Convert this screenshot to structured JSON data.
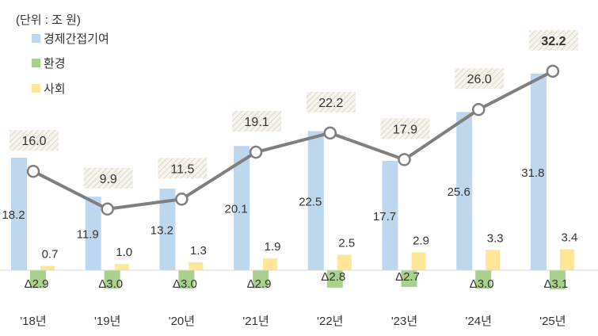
{
  "unit_label": "(단위 : 조 원)",
  "colors": {
    "economic": "#bdd7ee",
    "environment": "#a9d18e",
    "social": "#ffe699",
    "line": "#7f7f7f",
    "text": "#333333"
  },
  "chart_data": {
    "type": "bar",
    "categories": [
      "'18년",
      "'19년",
      "'20년",
      "'21년",
      "'22년",
      "'23년",
      "'24년",
      "'25년"
    ],
    "series": [
      {
        "name": "경제간접기여",
        "type": "bar",
        "values": [
          18.2,
          11.9,
          13.2,
          20.1,
          22.5,
          17.7,
          25.6,
          31.8
        ]
      },
      {
        "name": "환경",
        "type": "bar",
        "values": [
          -2.9,
          -3.0,
          -3.0,
          -2.9,
          -2.8,
          -2.7,
          -3.0,
          -3.1
        ]
      },
      {
        "name": "사회",
        "type": "bar",
        "values": [
          0.7,
          1.0,
          1.3,
          1.9,
          2.5,
          2.9,
          3.3,
          3.4
        ]
      },
      {
        "type": "line",
        "values": [
          16.0,
          9.9,
          11.5,
          19.1,
          22.2,
          17.9,
          26.0,
          32.2
        ]
      }
    ],
    "bar_labels": {
      "economic": [
        "18.2",
        "11.9",
        "13.2",
        "20.1",
        "22.5",
        "17.7",
        "25.6",
        "31.8"
      ],
      "environment": [
        "Δ2.9",
        "Δ3.0",
        "Δ3.0",
        "Δ2.9",
        "Δ2.8",
        "Δ2.7",
        "Δ3.0",
        "Δ3.1"
      ],
      "social": [
        "0.7",
        "1.0",
        "1.3",
        "1.9",
        "2.5",
        "2.9",
        "3.3",
        "3.4"
      ],
      "total": [
        "16.0",
        "9.9",
        "11.5",
        "19.1",
        "22.2",
        "17.9",
        "26.0",
        "32.2"
      ]
    },
    "ylim": [
      -3.5,
      34
    ],
    "grid": false,
    "legend_position": "top-left"
  }
}
